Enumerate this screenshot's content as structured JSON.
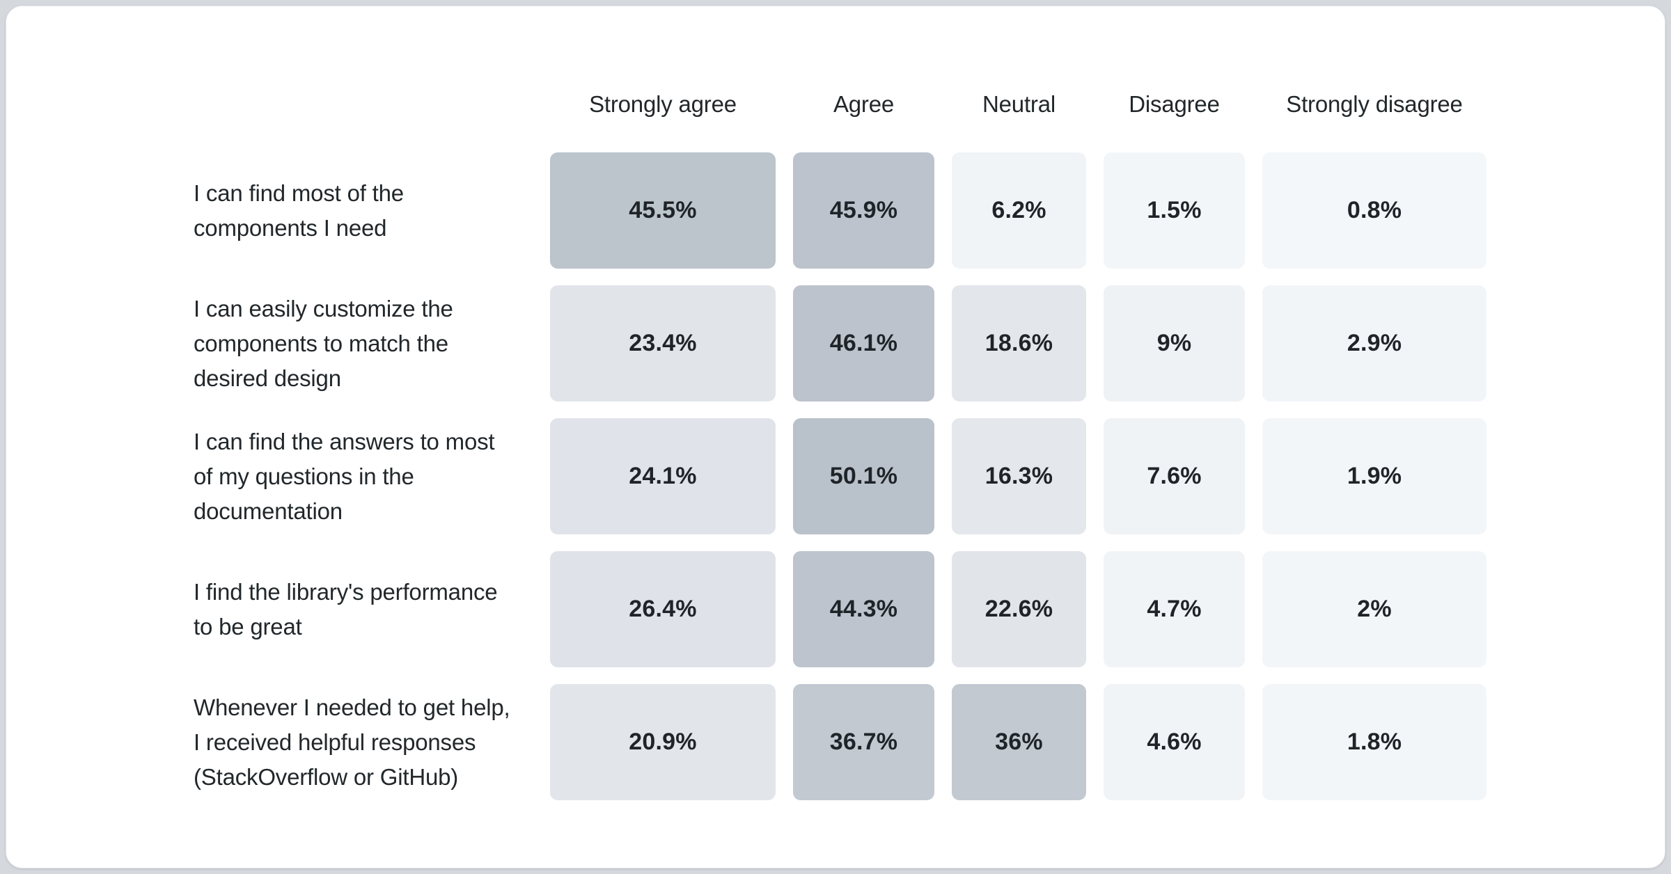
{
  "page": {
    "background_color": "#d5d9de",
    "card_background": "#ffffff",
    "text_color": "#21272a"
  },
  "chart_data": {
    "type": "heatmap",
    "title": "",
    "legend": "none",
    "grid": "off",
    "categories": [
      "Strongly agree",
      "Agree",
      "Neutral",
      "Disagree",
      "Strongly disagree"
    ],
    "rows": [
      {
        "label": "I can find most of the\ncomponents I need",
        "values": [
          45.5,
          45.9,
          6.2,
          1.5,
          0.8
        ],
        "display": [
          "45.5%",
          "45.9%",
          "6.2%",
          "1.5%",
          "0.8%"
        ]
      },
      {
        "label": "I can easily customize the\ncomponents to match the\ndesired design",
        "values": [
          23.4,
          46.1,
          18.6,
          9,
          2.9
        ],
        "display": [
          "23.4%",
          "46.1%",
          "18.6%",
          "9%",
          "2.9%"
        ]
      },
      {
        "label": "I can find the answers to most\nof my questions in the\ndocumentation",
        "values": [
          24.1,
          50.1,
          16.3,
          7.6,
          1.9
        ],
        "display": [
          "24.1%",
          "50.1%",
          "16.3%",
          "7.6%",
          "1.9%"
        ]
      },
      {
        "label": "I find the library's performance\nto be great",
        "values": [
          26.4,
          44.3,
          22.6,
          4.7,
          2
        ],
        "display": [
          "26.4%",
          "44.3%",
          "22.6%",
          "4.7%",
          "2%"
        ]
      },
      {
        "label": "Whenever I needed to get help,\nI received helpful responses\n(StackOverflow or GitHub)",
        "values": [
          20.9,
          36.7,
          36,
          4.6,
          1.8
        ],
        "display": [
          "20.9%",
          "36.7%",
          "36%",
          "4.6%",
          "1.8%"
        ]
      }
    ],
    "value_range": [
      0,
      50.1
    ],
    "color_scale": {
      "stops": [
        [
          0,
          "#f4f7f9"
        ],
        [
          5,
          "#f1f4f7"
        ],
        [
          10,
          "#eef2f5"
        ],
        [
          16,
          "#e4e8ec"
        ],
        [
          27,
          "#dfe3e9"
        ],
        [
          36,
          "#c2c9d1"
        ],
        [
          50.1,
          "#b9c1ca"
        ]
      ]
    }
  }
}
